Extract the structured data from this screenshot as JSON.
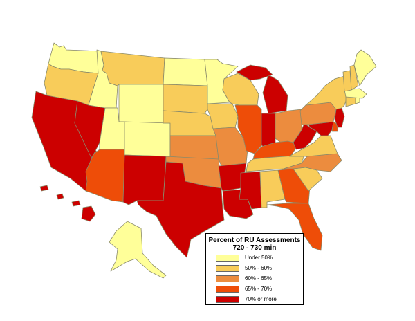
{
  "colors": {
    "under50": "#ffff99",
    "50to60": "#f8cc5a",
    "60to65": "#ec8c3e",
    "65to70": "#ee4d08",
    "70plus": "#cc0000"
  },
  "legend": {
    "title": "Percent of RU Assessments",
    "subtitle": "720 - 730 min",
    "items": [
      {
        "label": "Under 50%",
        "class": "under50"
      },
      {
        "label": "50% - 60%",
        "class": "50to60"
      },
      {
        "label": "60% - 65%",
        "class": "60to65"
      },
      {
        "label": "65% - 70%",
        "class": "65to70"
      },
      {
        "label": "70% or more",
        "class": "70plus"
      }
    ]
  },
  "states": {
    "WA": "under50",
    "OR": "50to60",
    "CA": "70plus",
    "NV": "70plus",
    "ID": "under50",
    "MT": "50to60",
    "WY": "under50",
    "UT": "under50",
    "CO": "under50",
    "AZ": "65to70",
    "NM": "70plus",
    "ND": "under50",
    "SD": "50to60",
    "NE": "50to60",
    "KS": "60to65",
    "OK": "60to65",
    "TX": "70plus",
    "MN": "under50",
    "IA": "50to60",
    "MO": "60to65",
    "AR": "70plus",
    "LA": "70plus",
    "WI": "50to60",
    "IL": "65to70",
    "MI": "70plus",
    "IN": "70plus",
    "OH": "60to65",
    "KY": "65to70",
    "TN": "50to60",
    "MS": "70plus",
    "AL": "50to60",
    "GA": "65to70",
    "FL": "65to70",
    "SC": "50to60",
    "NC": "60to65",
    "VA": "50to60",
    "WV": "70plus",
    "PA": "60to65",
    "NY": "50to60",
    "VT": "50to60",
    "NH": "50to60",
    "ME": "under50",
    "MA": "under50",
    "CT": "50to60",
    "RI": "under50",
    "NJ": "70plus",
    "DE": "65to70",
    "MD": "70plus",
    "AK": "under50",
    "HI": "70plus"
  }
}
